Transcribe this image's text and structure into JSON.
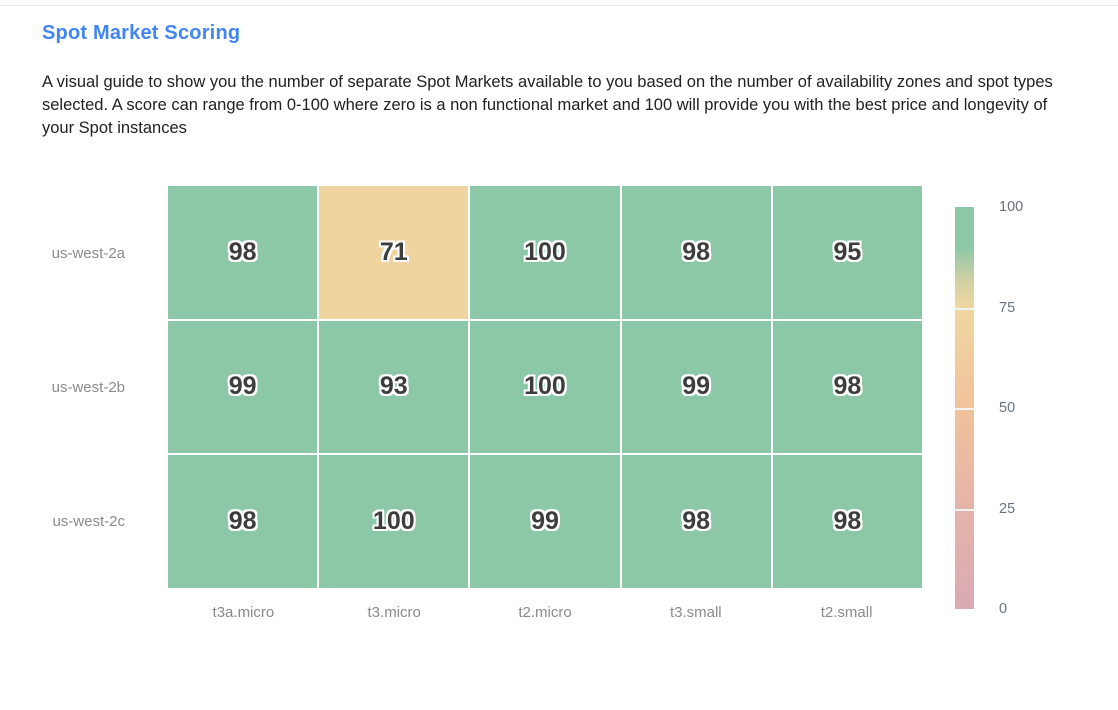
{
  "header": {
    "title": "Spot Market Scoring",
    "description": "A visual guide to show you the number of separate Spot Markets available to you based on the number of availability zones and spot types selected. A score can range from 0-100 where zero is a non functional market and 100 will provide you with the best price and longevity of your Spot instances"
  },
  "colors": {
    "title_blue": "#4285f4",
    "body_text": "#212121",
    "axis_label_gray": "#8b8b8b",
    "cell_value_text": "#3d3d3d",
    "score_green": "#8cc8a8",
    "score_tan": "#f0d49f",
    "colorbar_pink": "#d9aab4"
  },
  "chart_data": {
    "type": "heatmap",
    "title": "Spot Market Scoring",
    "x_categories": [
      "t3a.micro",
      "t3.micro",
      "t2.micro",
      "t3.small",
      "t2.small"
    ],
    "y_categories": [
      "us-west-2a",
      "us-west-2b",
      "us-west-2c"
    ],
    "rows": [
      {
        "label": "us-west-2a",
        "values": [
          98,
          71,
          100,
          98,
          95
        ]
      },
      {
        "label": "us-west-2b",
        "values": [
          99,
          93,
          100,
          99,
          98
        ]
      },
      {
        "label": "us-west-2c",
        "values": [
          98,
          100,
          99,
          98,
          98
        ]
      }
    ],
    "value_range": [
      0,
      100
    ],
    "colorbar_ticks": [
      "100",
      "75",
      "50",
      "25",
      "0"
    ],
    "colorscale_stops": [
      {
        "value": 0,
        "color": "#d9aab4"
      },
      {
        "value": 25,
        "color": "#e5b4a9"
      },
      {
        "value": 50,
        "color": "#f1c29c"
      },
      {
        "value": 75,
        "color": "#f0d7a0"
      },
      {
        "value": 82,
        "color": "#cfd0a3"
      },
      {
        "value": 90,
        "color": "#8cc8a8"
      },
      {
        "value": 100,
        "color": "#8cc8a8"
      }
    ],
    "legend_position": "right",
    "grid": "off"
  }
}
